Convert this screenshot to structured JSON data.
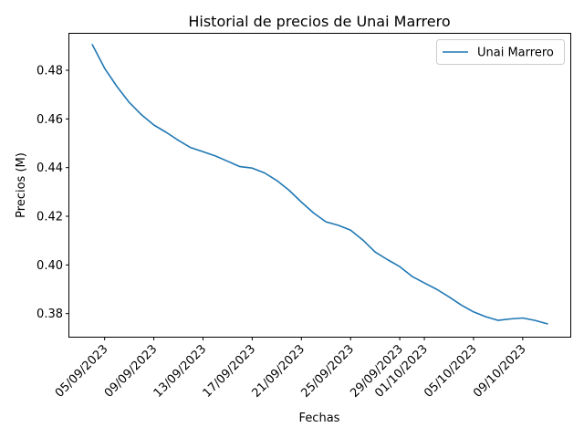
{
  "chart_data": {
    "type": "line",
    "title": "Historial de precios de Unai Marrero",
    "xlabel": "Fechas",
    "ylabel": "Precios (M)",
    "ylim": [
      0.3705,
      0.495
    ],
    "yticks": [
      0.38,
      0.4,
      0.42,
      0.44,
      0.46,
      0.48
    ],
    "ytick_labels": [
      "0.38",
      "0.40",
      "0.42",
      "0.44",
      "0.46",
      "0.48"
    ],
    "xticks": [
      "2023-09-05",
      "2023-09-09",
      "2023-09-13",
      "2023-09-17",
      "2023-09-21",
      "2023-09-25",
      "2023-09-29",
      "2023-10-01",
      "2023-10-05",
      "2023-10-09"
    ],
    "xtick_labels": [
      "05/09/2023",
      "09/09/2023",
      "13/09/2023",
      "17/09/2023",
      "21/09/2023",
      "25/09/2023",
      "29/09/2023",
      "01/10/2023",
      "05/10/2023",
      "09/10/2023"
    ],
    "legend_position": "top-right",
    "grid": false,
    "series": [
      {
        "name": "Unai Marrero",
        "color": "#1f77b4",
        "x": [
          "2023-09-04",
          "2023-09-05",
          "2023-09-06",
          "2023-09-07",
          "2023-09-08",
          "2023-09-09",
          "2023-09-10",
          "2023-09-11",
          "2023-09-12",
          "2023-09-13",
          "2023-09-14",
          "2023-09-15",
          "2023-09-16",
          "2023-09-17",
          "2023-09-18",
          "2023-09-19",
          "2023-09-20",
          "2023-09-21",
          "2023-09-22",
          "2023-09-23",
          "2023-09-24",
          "2023-09-25",
          "2023-09-26",
          "2023-09-27",
          "2023-09-28",
          "2023-09-29",
          "2023-09-30",
          "2023-10-01",
          "2023-10-02",
          "2023-10-03",
          "2023-10-04",
          "2023-10-05",
          "2023-10-06",
          "2023-10-07",
          "2023-10-08",
          "2023-10-09",
          "2023-10-10",
          "2023-10-11"
        ],
        "values": [
          0.4905,
          0.4808,
          0.4733,
          0.4668,
          0.4617,
          0.4575,
          0.4545,
          0.4512,
          0.4482,
          0.4465,
          0.4448,
          0.4426,
          0.4404,
          0.4398,
          0.4378,
          0.4347,
          0.4307,
          0.4258,
          0.4213,
          0.4177,
          0.4163,
          0.4143,
          0.4102,
          0.4053,
          0.4022,
          0.3993,
          0.3953,
          0.3926,
          0.39,
          0.3869,
          0.3835,
          0.3807,
          0.3787,
          0.3772,
          0.3778,
          0.3782,
          0.3772,
          0.3758
        ]
      }
    ]
  }
}
